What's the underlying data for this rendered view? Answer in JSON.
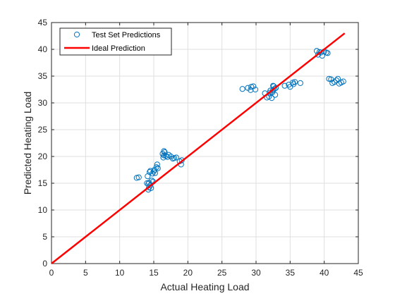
{
  "colors": {
    "scatter": "#0072BD",
    "ideal_line": "#FF0000",
    "grid": "#DFDFDF",
    "axis": "#262626",
    "background": "#FFFFFF"
  },
  "chart_data": {
    "type": "scatter",
    "title": "",
    "xlabel": "Actual Heating Load",
    "ylabel": "Predicted Heating Load",
    "xlim": [
      0,
      45
    ],
    "ylim": [
      0,
      45
    ],
    "xticks": [
      "0",
      "5",
      "10",
      "15",
      "20",
      "25",
      "30",
      "35",
      "40",
      "45"
    ],
    "yticks": [
      "0",
      "5",
      "10",
      "15",
      "20",
      "25",
      "30",
      "35",
      "40",
      "45"
    ],
    "grid": true,
    "legend_position": "top-left",
    "series": [
      {
        "name": "Test Set Predictions",
        "kind": "markers",
        "marker": "circle",
        "x": [
          12.5,
          12.8,
          14.0,
          14.2,
          14.3,
          14.1,
          14.4,
          14.5,
          14.3,
          14.6,
          14.2,
          14.5,
          14.7,
          14.9,
          14.8,
          15.0,
          15.1,
          15.2,
          15.4,
          15.5,
          15.6,
          16.3,
          16.5,
          16.6,
          16.5,
          16.8,
          16.4,
          17.0,
          17.2,
          17.5,
          17.8,
          18.0,
          18.3,
          18.8,
          19.0,
          19.1,
          28.0,
          28.8,
          29.2,
          29.3,
          29.6,
          29.9,
          31.3,
          31.6,
          31.9,
          32.0,
          32.1,
          32.3,
          32.4,
          32.5,
          32.6,
          32.7,
          32.9,
          32.5,
          32.8,
          34.2,
          34.8,
          35.0,
          35.4,
          35.7,
          35.5,
          36.5,
          38.9,
          39.1,
          39.3,
          39.5,
          39.7,
          40.0,
          40.3,
          40.5,
          40.7,
          41.0,
          41.2,
          41.5,
          41.8,
          42.0,
          42.2,
          42.5,
          42.8
        ],
        "y": [
          16.0,
          16.1,
          15.0,
          13.8,
          14.2,
          16.3,
          17.1,
          17.3,
          15.1,
          14.1,
          14.9,
          14.6,
          15.5,
          15.3,
          16.8,
          17.2,
          17.5,
          16.9,
          18.0,
          18.5,
          17.8,
          20.5,
          21.0,
          20.8,
          20.2,
          20.1,
          19.8,
          19.9,
          20.3,
          20.0,
          19.6,
          19.7,
          19.8,
          19.1,
          18.5,
          19.3,
          32.6,
          32.8,
          32.4,
          33.0,
          33.1,
          32.5,
          31.8,
          31.0,
          31.2,
          31.9,
          32.3,
          30.9,
          32.0,
          32.4,
          33.1,
          32.6,
          32.8,
          33.2,
          31.5,
          33.2,
          33.4,
          33.0,
          33.8,
          33.9,
          33.5,
          33.7,
          39.7,
          39.0,
          39.5,
          39.4,
          38.8,
          39.6,
          39.4,
          39.3,
          34.5,
          34.4,
          33.7,
          33.9,
          34.2,
          34.5,
          33.6,
          33.8,
          34.0
        ]
      },
      {
        "name": "Ideal Prediction",
        "kind": "line",
        "x": [
          0,
          43
        ],
        "y": [
          0,
          43
        ]
      }
    ]
  }
}
